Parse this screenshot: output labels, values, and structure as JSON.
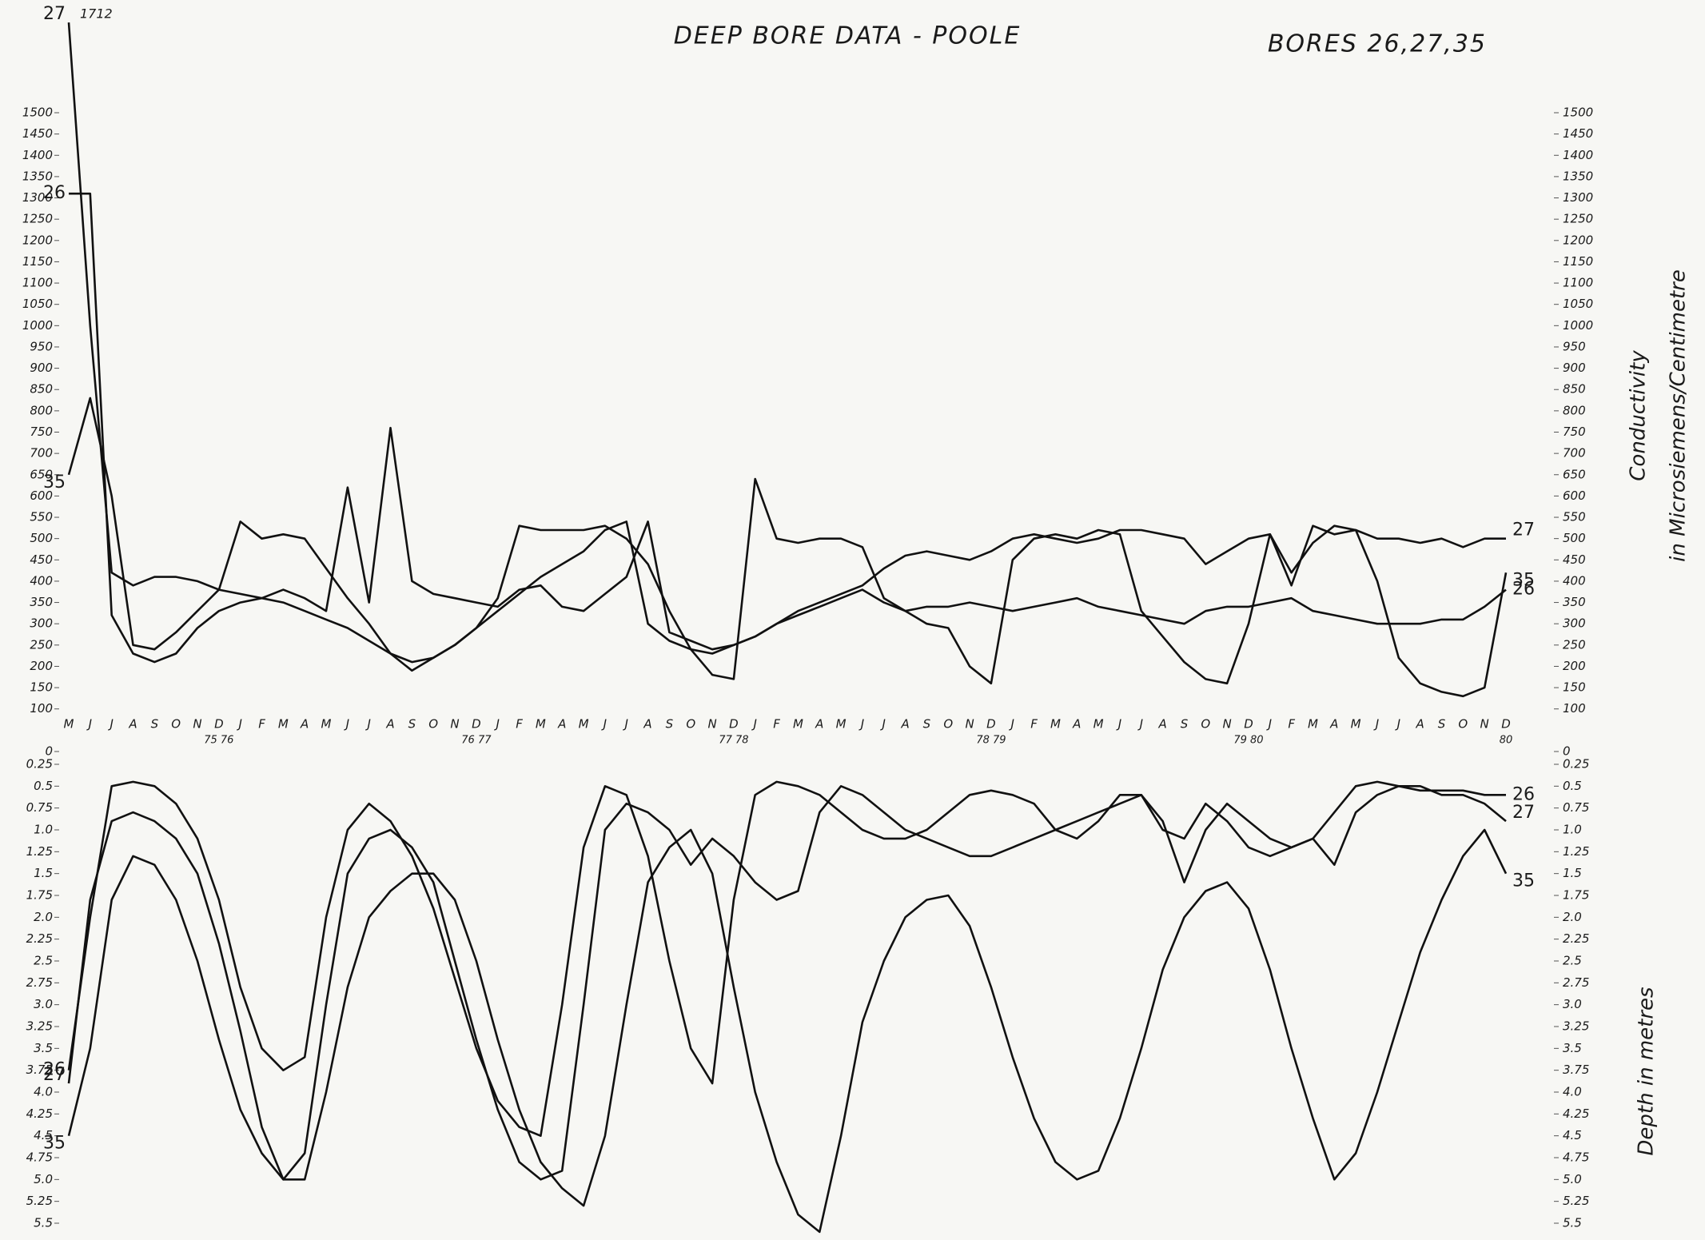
{
  "chart_data": [
    {
      "type": "line",
      "title": "DEEP BORE DATA - POOLE",
      "subtitle": "BORES 26,27,35",
      "y_label": [
        "Conductivity",
        "in Microsiemens/Centimetre"
      ],
      "categories": [
        "M",
        "J",
        "J",
        "A",
        "S",
        "O",
        "N",
        "D",
        "J",
        "F",
        "M",
        "A",
        "M",
        "J",
        "J",
        "A",
        "S",
        "O",
        "N",
        "D",
        "J",
        "F",
        "M",
        "A",
        "M",
        "J",
        "J",
        "A",
        "S",
        "O",
        "N",
        "D",
        "J",
        "F",
        "M",
        "A",
        "M",
        "J",
        "J",
        "A",
        "S",
        "O",
        "N",
        "D",
        "J",
        "F",
        "M",
        "A",
        "M",
        "J",
        "J",
        "A",
        "S",
        "O",
        "N",
        "D",
        "J",
        "F",
        "M",
        "A",
        "M",
        "J",
        "J",
        "A",
        "S",
        "O",
        "N",
        "D"
      ],
      "year_labels": [
        null,
        null,
        null,
        null,
        null,
        null,
        null,
        "75 76",
        null,
        null,
        null,
        null,
        null,
        null,
        null,
        null,
        null,
        null,
        null,
        "76 77",
        null,
        null,
        null,
        null,
        null,
        null,
        null,
        null,
        null,
        null,
        null,
        "77 78",
        null,
        null,
        null,
        null,
        null,
        null,
        null,
        null,
        null,
        null,
        null,
        "78 79",
        null,
        null,
        null,
        null,
        null,
        null,
        null,
        null,
        null,
        null,
        null,
        "79 80",
        null,
        null,
        null,
        null,
        null,
        null,
        null,
        null,
        null,
        null,
        null,
        "80"
      ],
      "ylim": [
        0,
        1500
      ],
      "yticks": [
        0,
        100,
        150,
        200,
        250,
        300,
        350,
        400,
        450,
        500,
        550,
        600,
        650,
        700,
        750,
        800,
        850,
        900,
        950,
        1000,
        1050,
        1100,
        1150,
        1200,
        1250,
        1300,
        1350,
        1400,
        1450,
        1500
      ],
      "series": [
        {
          "name": "27",
          "color": "#111111",
          "values": [
            1712,
            1000,
            420,
            390,
            410,
            410,
            400,
            380,
            370,
            360,
            350,
            330,
            310,
            290,
            260,
            230,
            210,
            220,
            250,
            290,
            330,
            370,
            410,
            440,
            470,
            520,
            540,
            300,
            260,
            240,
            230,
            250,
            270,
            300,
            330,
            350,
            370,
            390,
            430,
            460,
            470,
            460,
            450,
            470,
            500,
            510,
            500,
            490,
            500,
            520,
            520,
            510,
            500,
            440,
            470,
            500,
            510,
            420,
            490,
            530,
            520,
            500,
            500,
            490,
            500,
            480,
            500,
            500
          ]
        },
        {
          "name": "26",
          "color": "#111111",
          "values": [
            1310,
            1310,
            320,
            230,
            210,
            230,
            290,
            330,
            350,
            360,
            380,
            360,
            330,
            620,
            350,
            760,
            400,
            370,
            360,
            350,
            340,
            380,
            390,
            340,
            330,
            370,
            410,
            540,
            280,
            260,
            240,
            250,
            270,
            300,
            320,
            340,
            360,
            380,
            350,
            330,
            340,
            340,
            350,
            340,
            330,
            340,
            350,
            360,
            340,
            330,
            320,
            310,
            300,
            330,
            340,
            340,
            350,
            360,
            330,
            320,
            310,
            300,
            300,
            300,
            310,
            310,
            340,
            380
          ]
        },
        {
          "name": "35",
          "color": "#111111",
          "values": [
            650,
            830,
            600,
            250,
            240,
            280,
            330,
            380,
            540,
            500,
            510,
            500,
            430,
            360,
            300,
            230,
            190,
            220,
            250,
            290,
            360,
            530,
            520,
            520,
            520,
            530,
            500,
            440,
            330,
            240,
            180,
            170,
            640,
            500,
            490,
            500,
            500,
            480,
            360,
            330,
            300,
            290,
            200,
            160,
            450,
            500,
            510,
            500,
            520,
            510,
            330,
            270,
            210,
            170,
            160,
            300,
            510,
            390,
            530,
            510,
            520,
            400,
            220,
            160,
            140,
            130,
            150,
            420
          ]
        }
      ]
    },
    {
      "type": "line",
      "y_label": "Depth in metres",
      "ylim": [
        5.5,
        0.25
      ],
      "yticks": [
        0.25,
        0.5,
        0.75,
        {
          "value": 1,
          "label": "1.0"
        },
        1.25,
        1.5,
        1.75,
        {
          "value": 2,
          "label": "2.0"
        },
        2.25,
        2.5,
        2.75,
        {
          "value": 3,
          "label": "3.0"
        },
        3.25,
        3.5,
        3.75,
        {
          "value": 4,
          "label": "4.0"
        },
        4.25,
        4.5,
        4.75,
        {
          "value": 5,
          "label": "5.0"
        },
        5.25,
        5.5
      ],
      "series": [
        {
          "name": "27",
          "color": "#111111",
          "values": [
            3.9,
            1.8,
            0.9,
            0.8,
            0.9,
            1.1,
            1.5,
            2.3,
            3.3,
            4.4,
            5.0,
            4.7,
            3.0,
            1.5,
            1.1,
            1.0,
            1.2,
            1.6,
            2.5,
            3.4,
            4.2,
            4.8,
            5.0,
            4.9,
            3.0,
            1.0,
            0.7,
            0.8,
            1.0,
            1.4,
            1.1,
            1.3,
            1.6,
            1.8,
            1.7,
            0.8,
            0.5,
            0.6,
            0.8,
            1.0,
            1.1,
            1.2,
            1.3,
            1.3,
            1.2,
            1.1,
            1.0,
            0.9,
            0.8,
            0.7,
            0.6,
            1.0,
            1.1,
            0.7,
            0.9,
            1.2,
            1.3,
            1.2,
            1.1,
            1.4,
            0.8,
            0.6,
            0.5,
            0.5,
            0.6,
            0.6,
            0.7,
            0.9
          ]
        },
        {
          "name": "26",
          "color": "#111111",
          "values": [
            3.75,
            2.0,
            0.5,
            0.45,
            0.5,
            0.7,
            1.1,
            1.8,
            2.8,
            3.5,
            3.75,
            3.6,
            2.0,
            1.0,
            0.7,
            0.9,
            1.3,
            1.9,
            2.7,
            3.5,
            4.1,
            4.4,
            4.5,
            3.0,
            1.2,
            0.5,
            0.6,
            1.3,
            2.5,
            3.5,
            3.9,
            1.8,
            0.6,
            0.45,
            0.5,
            0.6,
            0.8,
            1.0,
            1.1,
            1.1,
            1.0,
            0.8,
            0.6,
            0.55,
            0.6,
            0.7,
            1.0,
            1.1,
            0.9,
            0.6,
            0.6,
            0.9,
            1.6,
            1.0,
            0.7,
            0.9,
            1.1,
            1.2,
            1.1,
            0.8,
            0.5,
            0.45,
            0.5,
            0.55,
            0.55,
            0.55,
            0.6,
            0.6
          ]
        },
        {
          "name": "35",
          "color": "#111111",
          "values": [
            4.5,
            3.5,
            1.8,
            1.3,
            1.4,
            1.8,
            2.5,
            3.4,
            4.2,
            4.7,
            5.0,
            5.0,
            4.0,
            2.8,
            2.0,
            1.7,
            1.5,
            1.5,
            1.8,
            2.5,
            3.4,
            4.2,
            4.8,
            5.1,
            5.3,
            4.5,
            3.0,
            1.6,
            1.2,
            1.0,
            1.5,
            2.8,
            4.0,
            4.8,
            5.4,
            5.6,
            4.5,
            3.2,
            2.5,
            2.0,
            1.8,
            1.75,
            2.1,
            2.8,
            3.6,
            4.3,
            4.8,
            5.0,
            4.9,
            4.3,
            3.5,
            2.6,
            2.0,
            1.7,
            1.6,
            1.9,
            2.6,
            3.5,
            4.3,
            5.0,
            4.7,
            4.0,
            3.2,
            2.4,
            1.8,
            1.3,
            1.0,
            1.5
          ]
        }
      ]
    }
  ]
}
